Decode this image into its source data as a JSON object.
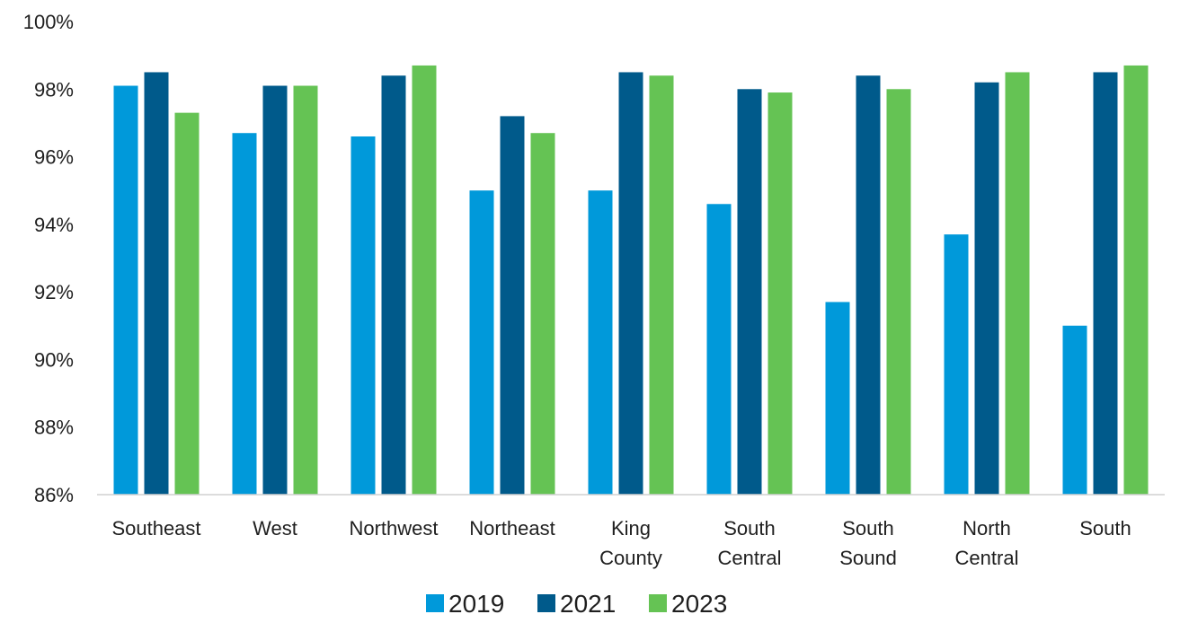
{
  "chart_data": {
    "type": "bar",
    "title": "",
    "xlabel": "",
    "ylabel": "",
    "categories": [
      [
        "Southeast"
      ],
      [
        "West"
      ],
      [
        "Northwest"
      ],
      [
        "Northeast"
      ],
      [
        "King",
        "County"
      ],
      [
        "South",
        "Central"
      ],
      [
        "South",
        "Sound"
      ],
      [
        "North",
        "Central"
      ],
      [
        "South"
      ]
    ],
    "series": [
      {
        "name": "2019",
        "color": "#0099da",
        "values": [
          98.1,
          96.7,
          96.6,
          95.0,
          95.0,
          94.6,
          91.7,
          93.7,
          91.0
        ]
      },
      {
        "name": "2021",
        "color": "#005a8b",
        "values": [
          98.5,
          98.1,
          98.4,
          97.2,
          98.5,
          98.0,
          98.4,
          98.2,
          98.5
        ]
      },
      {
        "name": "2023",
        "color": "#65c354",
        "values": [
          97.3,
          98.1,
          98.7,
          96.7,
          98.4,
          97.9,
          98.0,
          98.5,
          98.7
        ]
      }
    ],
    "ylim": [
      86,
      100
    ],
    "yticks": [
      86,
      88,
      90,
      92,
      94,
      96,
      98,
      100
    ],
    "ytick_labels": [
      "86%",
      "88%",
      "90%",
      "92%",
      "94%",
      "96%",
      "98%",
      "100%"
    ],
    "grid": false,
    "legend_position": "bottom"
  }
}
